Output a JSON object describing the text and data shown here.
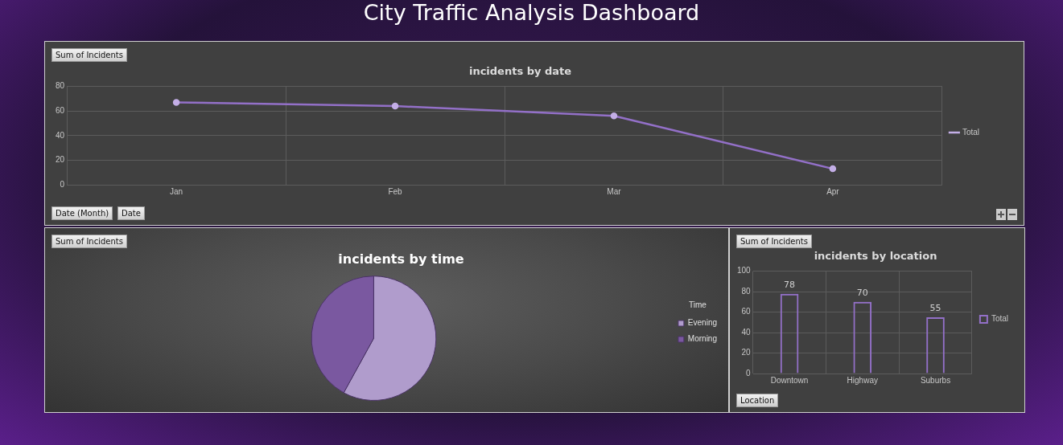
{
  "chart_data": [
    {
      "type": "other",
      "title": "City Traffic Analysis Dashboard"
    },
    {
      "type": "line",
      "title": "incidents by date",
      "annotations": [
        "Sum of Incidents",
        "Date (Month)",
        "Date"
      ],
      "categories": [
        "Jan",
        "Feb",
        "Mar",
        "Apr"
      ],
      "series": [
        {
          "name": "Total",
          "color": "#9370c8",
          "values": [
            67,
            64,
            56,
            13
          ]
        }
      ],
      "ylim": [
        0,
        80
      ],
      "yticks": [
        0,
        20,
        40,
        60,
        80
      ],
      "grid": true,
      "legend": "right",
      "marker": "circle",
      "line_style": "solid"
    },
    {
      "type": "pie",
      "title": "incidents by time",
      "annotations": [
        "Sum of Incidents"
      ],
      "legend_title": "Time",
      "categories": [
        "Evening",
        "Morning"
      ],
      "values": [
        58,
        42
      ],
      "colors": [
        "#b09ccc",
        "#7a58a0"
      ],
      "legend": "right"
    },
    {
      "type": "bar",
      "title": "incidents by location",
      "annotations": [
        "Sum of Incidents",
        "Location"
      ],
      "categories": [
        "Downtown",
        "Highway",
        "Suburbs"
      ],
      "series": [
        {
          "name": "Total",
          "color": "#9370c8",
          "values": [
            78,
            70,
            55
          ]
        }
      ],
      "ylim": [
        0,
        100
      ],
      "yticks": [
        0,
        20,
        40,
        60,
        80,
        100
      ],
      "grid": true,
      "legend": "right",
      "data_labels": true
    }
  ]
}
